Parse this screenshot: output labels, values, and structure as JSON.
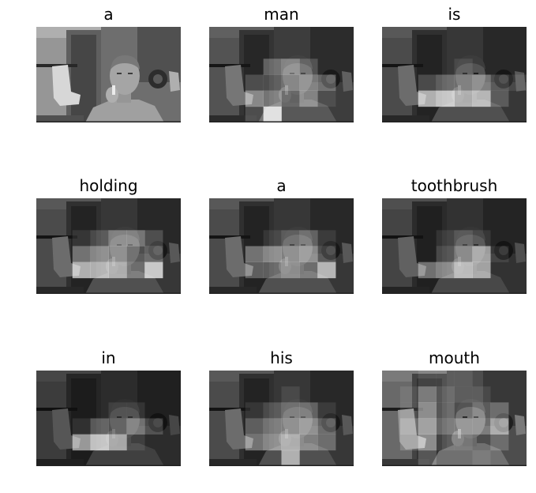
{
  "figure": {
    "panels": [
      {
        "word": "a"
      },
      {
        "word": "man"
      },
      {
        "word": "is"
      },
      {
        "word": "holding"
      },
      {
        "word": "a"
      },
      {
        "word": "toothbrush"
      },
      {
        "word": "in"
      },
      {
        "word": "his"
      },
      {
        "word": "mouth"
      }
    ]
  }
}
